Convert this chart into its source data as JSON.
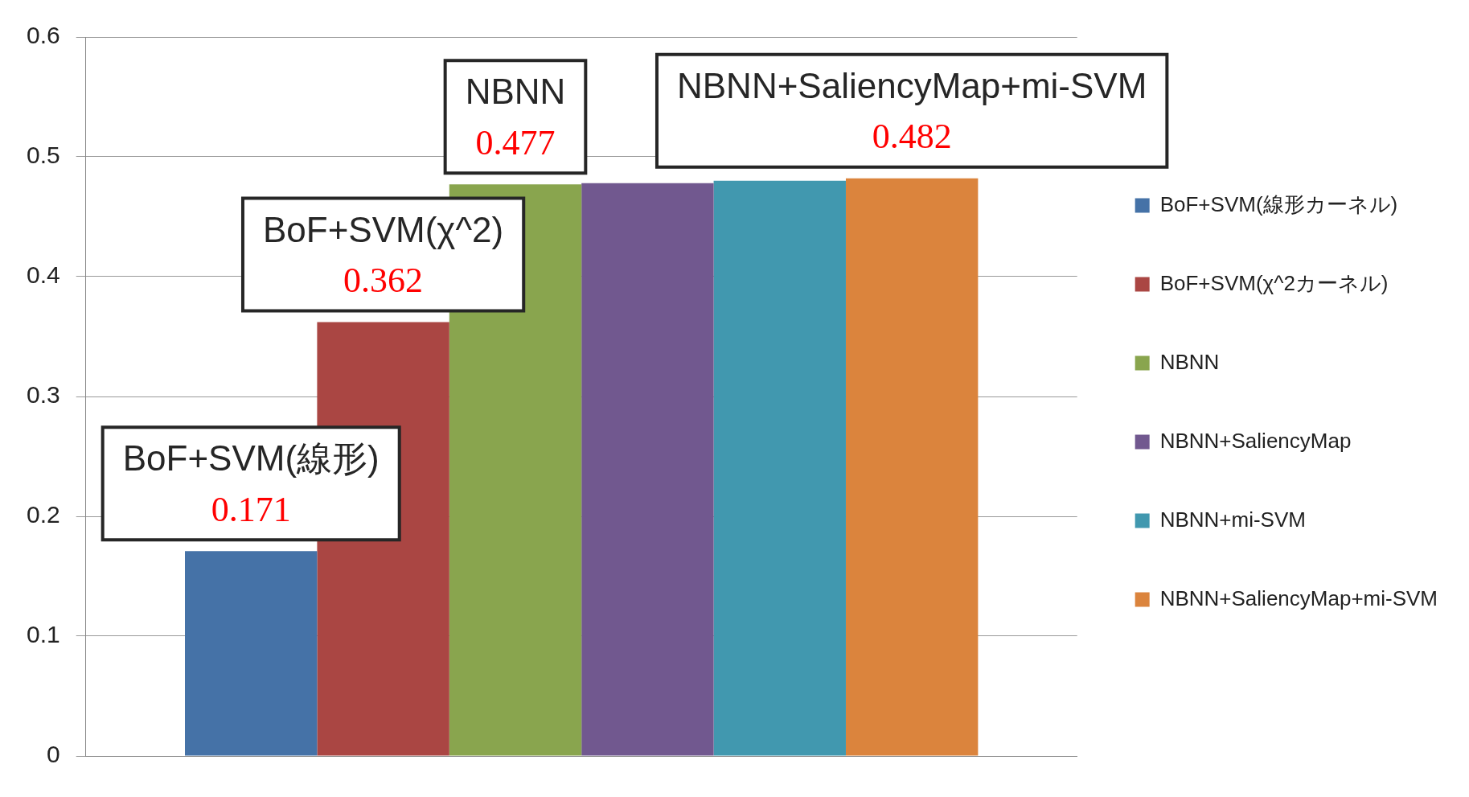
{
  "chart_data": {
    "type": "bar",
    "categories": [
      null
    ],
    "series": [
      {
        "name": "BoF+SVM(線形カーネル)",
        "color": "#4572a7",
        "values": [
          0.171
        ],
        "value_labels": [
          "0.171"
        ]
      },
      {
        "name": "BoF+SVM(χ^2カーネル)",
        "color": "#aa4643",
        "values": [
          0.362
        ],
        "value_labels": [
          "0.362"
        ]
      },
      {
        "name": "NBNN",
        "color": "#89a54e",
        "values": [
          0.477
        ],
        "value_labels": [
          "0.477"
        ]
      },
      {
        "name": "NBNN+SaliencyMap",
        "color": "#71588f",
        "values": [
          0.478
        ]
      },
      {
        "name": "NBNN+mi-SVM",
        "color": "#4198af",
        "values": [
          0.48
        ]
      },
      {
        "name": "NBNN+SaliencyMap+mi-SVM",
        "color": "#db843d",
        "values": [
          0.482
        ],
        "value_labels": [
          "0.482"
        ]
      }
    ],
    "annotations": [
      "BoF+SVM(線形)",
      "BoF+SVM(χ^2)",
      "NBNN",
      "NBNN+SaliencyMap+mi-SVM"
    ],
    "ylim": [
      0,
      0.6
    ],
    "yticks": [
      0,
      0.1,
      0.2,
      0.3,
      0.4,
      0.5,
      0.6
    ],
    "grid": "y",
    "legend": "right"
  }
}
